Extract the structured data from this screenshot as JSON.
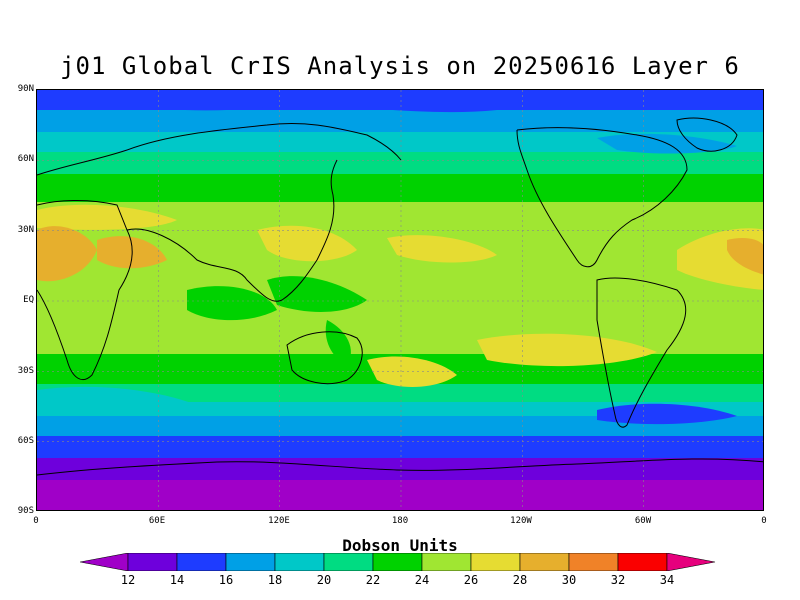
{
  "title": "j01 Global CrIS Analysis on 20250616 Layer 6",
  "lat_labels": [
    "90N",
    "60N",
    "30N",
    "EQ",
    "30S",
    "60S",
    "90S"
  ],
  "lon_labels": [
    "0",
    "60E",
    "120E",
    "180",
    "120W",
    "60W",
    "0"
  ],
  "colorbar": {
    "title": "Dobson Units",
    "ticks": [
      "12",
      "14",
      "16",
      "18",
      "20",
      "22",
      "24",
      "26",
      "28",
      "30",
      "32",
      "34"
    ],
    "colors": [
      "#a000c8",
      "#6e00dc",
      "#1e3cff",
      "#00a0e6",
      "#00c8c8",
      "#00dc82",
      "#00d200",
      "#a0e632",
      "#e6dc32",
      "#e6af2d",
      "#f08228",
      "#fa0000",
      "#e6007d"
    ]
  },
  "chart_data": {
    "type": "heatmap",
    "title": "j01 Global CrIS Analysis on 20250616 Layer 6",
    "units": "Dobson Units",
    "x_range": [
      "0",
      "0"
    ],
    "y_range": [
      "90S",
      "90N"
    ],
    "zonal_profile": [
      {
        "lat": "90N",
        "value": 14
      },
      {
        "lat": "75N",
        "value": 18
      },
      {
        "lat": "60N",
        "value": 21
      },
      {
        "lat": "45N",
        "value": 24
      },
      {
        "lat": "30N",
        "value": 27
      },
      {
        "lat": "EQ",
        "value": 25
      },
      {
        "lat": "30S",
        "value": 25
      },
      {
        "lat": "45S",
        "value": 22
      },
      {
        "lat": "60S",
        "value": 16
      },
      {
        "lat": "75S",
        "value": 13
      },
      {
        "lat": "90S",
        "value": 12
      }
    ],
    "grid": true
  }
}
